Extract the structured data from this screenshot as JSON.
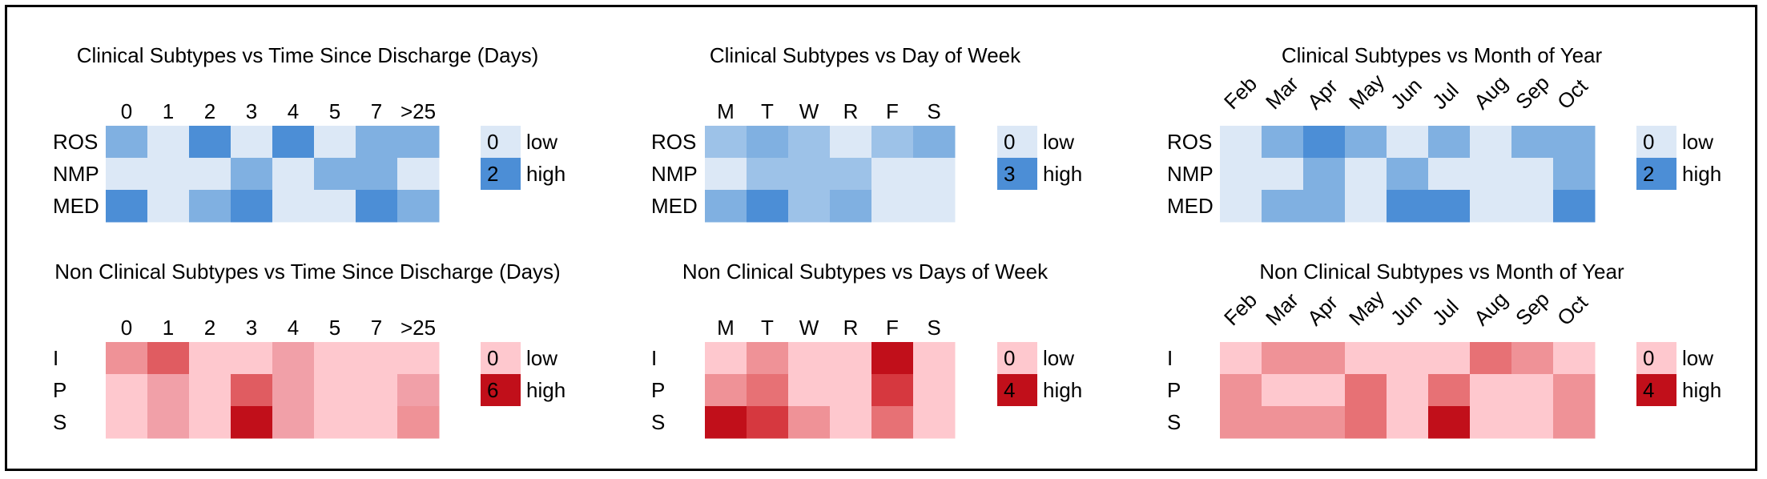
{
  "palettes": {
    "blue": [
      "#dce8f6",
      "#9dc2e8",
      "#80b0e1",
      "#4c8ed6"
    ],
    "red": [
      "#fec8ce",
      "#f1a0a8",
      "#ef9297",
      "#e77175",
      "#e05c61",
      "#d6383f",
      "#c10f1a"
    ]
  },
  "chart_data": [
    {
      "type": "heatmap",
      "title": "Clinical Subtypes vs Time Since Discharge (Days)",
      "palette": "blue",
      "columns": [
        "0",
        "1",
        "2",
        "3",
        "4",
        "5",
        "7",
        ">25"
      ],
      "rows": [
        "ROS",
        "NMP",
        "MED"
      ],
      "values": [
        [
          1,
          0,
          2,
          0,
          2,
          0,
          1,
          1
        ],
        [
          0,
          0,
          0,
          1,
          0,
          1,
          1,
          0
        ],
        [
          2,
          0,
          1,
          2,
          0,
          0,
          2,
          1
        ]
      ],
      "legend": {
        "low_value": "0",
        "low_label": "low",
        "high_value": "2",
        "high_label": "high"
      }
    },
    {
      "type": "heatmap",
      "title": "Clinical Subtypes vs Day of Week",
      "palette": "blue",
      "columns": [
        "M",
        "T",
        "W",
        "R",
        "F",
        "S"
      ],
      "rows": [
        "ROS",
        "NMP",
        "MED"
      ],
      "values": [
        [
          1,
          2,
          1,
          0,
          1,
          2
        ],
        [
          0,
          1,
          1,
          1,
          0,
          0
        ],
        [
          2,
          3,
          1,
          2,
          0,
          0
        ]
      ],
      "legend": {
        "low_value": "0",
        "low_label": "low",
        "high_value": "3",
        "high_label": "high"
      }
    },
    {
      "type": "heatmap",
      "title": "Clinical Subtypes vs Month of Year",
      "palette": "blue",
      "columns": [
        "Feb",
        "Mar",
        "Apr",
        "May",
        "Jun",
        "Jul",
        "Aug",
        "Sep",
        "Oct"
      ],
      "rows": [
        "ROS",
        "NMP",
        "MED"
      ],
      "values": [
        [
          0,
          1,
          2,
          1,
          0,
          1,
          0,
          1,
          1
        ],
        [
          0,
          0,
          1,
          0,
          1,
          0,
          0,
          0,
          1
        ],
        [
          0,
          1,
          1,
          0,
          2,
          2,
          0,
          0,
          2
        ]
      ],
      "legend": {
        "low_value": "0",
        "low_label": "low",
        "high_value": "2",
        "high_label": "high"
      }
    },
    {
      "type": "heatmap",
      "title": "Non Clinical Subtypes vs Time Since Discharge (Days)",
      "palette": "red",
      "columns": [
        "0",
        "1",
        "2",
        "3",
        "4",
        "5",
        "7",
        ">25"
      ],
      "rows": [
        "I",
        "P",
        "S"
      ],
      "values": [
        [
          2,
          4,
          0,
          0,
          1,
          0,
          0,
          0
        ],
        [
          0,
          1,
          0,
          4,
          1,
          0,
          0,
          1
        ],
        [
          0,
          1,
          0,
          6,
          1,
          0,
          0,
          2
        ]
      ],
      "legend": {
        "low_value": "0",
        "low_label": "low",
        "high_value": "6",
        "high_label": "high"
      }
    },
    {
      "type": "heatmap",
      "title": "Non Clinical Subtypes vs Days of Week",
      "palette": "red",
      "columns": [
        "M",
        "T",
        "W",
        "R",
        "F",
        "S"
      ],
      "rows": [
        "I",
        "P",
        "S"
      ],
      "values": [
        [
          0,
          1,
          0,
          0,
          4,
          0
        ],
        [
          1,
          2,
          0,
          0,
          3,
          0
        ],
        [
          4,
          3,
          1,
          0,
          2,
          0
        ]
      ],
      "legend": {
        "low_value": "0",
        "low_label": "low",
        "high_value": "4",
        "high_label": "high"
      }
    },
    {
      "type": "heatmap",
      "title": "Non Clinical Subtypes vs Month of Year",
      "palette": "red",
      "columns": [
        "Feb",
        "Mar",
        "Apr",
        "May",
        "Jun",
        "Jul",
        "Aug",
        "Sep",
        "Oct"
      ],
      "rows": [
        "I",
        "P",
        "S"
      ],
      "values": [
        [
          0,
          1,
          1,
          0,
          0,
          0,
          2,
          1,
          0
        ],
        [
          1,
          0,
          0,
          2,
          0,
          2,
          0,
          0,
          1
        ],
        [
          1,
          1,
          1,
          2,
          0,
          4,
          0,
          0,
          1
        ]
      ],
      "legend": {
        "low_value": "0",
        "low_label": "low",
        "high_value": "4",
        "high_label": "high"
      }
    }
  ]
}
